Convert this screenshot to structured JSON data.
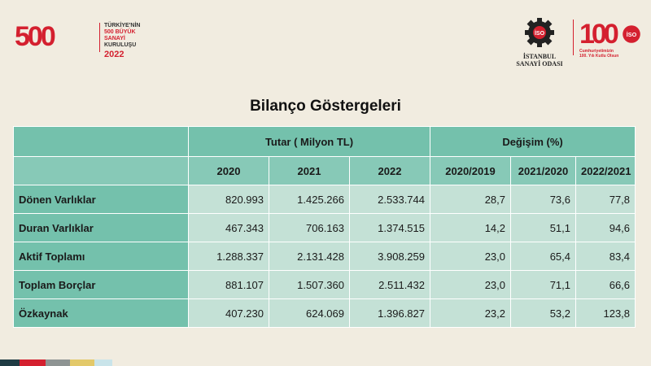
{
  "logo500": {
    "number": "500",
    "line1": "TÜRKİYE'NİN",
    "line2": "500 BÜYÜK SANAYİ",
    "line3": "KURULUŞU",
    "year": "2022"
  },
  "iso_logo": {
    "gear_text": "İSO",
    "name_line1": "İSTANBUL",
    "name_line2": "SANAYİ ODASI"
  },
  "anniversary_logo": {
    "number": "100",
    "gear_text": "İSO",
    "line1": "Cumhuriyetimizin",
    "line2": "100. Yılı Kutlu Olsun"
  },
  "title": "Bilanço Göstergeleri",
  "table": {
    "group_headers": {
      "tutar": "Tutar ( Milyon TL)",
      "degisim": "Değişim (%)"
    },
    "column_headers": [
      "2020",
      "2021",
      "2022",
      "2020/2019",
      "2021/2020",
      "2022/2021"
    ],
    "rows": [
      {
        "label": "Dönen Varlıklar",
        "values": [
          "820.993",
          "1.425.266",
          "2.533.744",
          "28,7",
          "73,6",
          "77,8"
        ]
      },
      {
        "label": "Duran Varlıklar",
        "values": [
          "467.343",
          "706.163",
          "1.374.515",
          "14,2",
          "51,1",
          "94,6"
        ]
      },
      {
        "label": "Aktif Toplamı",
        "values": [
          "1.288.337",
          "2.131.428",
          "3.908.259",
          "23,0",
          "65,4",
          "83,4"
        ]
      },
      {
        "label": "Toplam Borçlar",
        "values": [
          "881.107",
          "1.507.360",
          "2.511.432",
          "23,0",
          "71,1",
          "66,6"
        ]
      },
      {
        "label": "Özkaynak",
        "values": [
          "407.230",
          "624.069",
          "1.396.827",
          "23,2",
          "53,2",
          "123,8"
        ]
      }
    ]
  },
  "colors": {
    "background": "#f1ece0",
    "header": "#74c1ac",
    "cell": "#c4e1d6",
    "brand_red": "#d4202f",
    "footer_strip": [
      "#1f3b43",
      "#d4202f",
      "#8e9493",
      "#e3c96a",
      "#c9e4ea"
    ]
  }
}
